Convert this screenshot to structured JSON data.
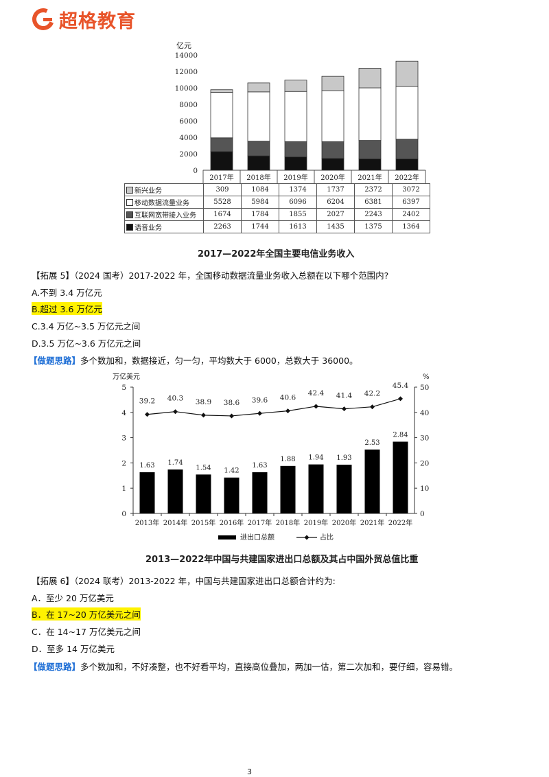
{
  "brand": {
    "name": "超格教育",
    "logo_color": "#e8542a"
  },
  "figure1": {
    "caption": "2017—2022年全国主要电信业务收入",
    "table_rows": [
      {
        "label": "新兴业务",
        "values": [
          "309",
          "1084",
          "1374",
          "1737",
          "2372",
          "3072"
        ]
      },
      {
        "label": "移动数据流量业务",
        "values": [
          "5528",
          "5984",
          "6096",
          "6204",
          "6381",
          "6397"
        ]
      },
      {
        "label": "互联网宽带接入业务",
        "values": [
          "1674",
          "1784",
          "1855",
          "2027",
          "2243",
          "2402"
        ]
      },
      {
        "label": "语音业务",
        "values": [
          "2263",
          "1744",
          "1613",
          "1435",
          "1375",
          "1364"
        ]
      }
    ]
  },
  "q5": {
    "stem": "【拓展 5】（2024 国考）2017-2022 年，全国移动数据流量业务收入总额在以下哪个范围内?",
    "options": [
      "A.不到 3.4 万亿元",
      "B.超过 3.6 万亿元",
      "C.3.4 万亿~3.5 万亿元之间",
      "D.3.5 万亿~3.6 万亿元之间"
    ],
    "highlighted": 1,
    "tip_label": "【做题思路】",
    "tip_text": "多个数加和，数据接近，匀一匀，平均数大于 6000，总数大于 36000。"
  },
  "figure2": {
    "caption": "2013—2022年中国与共建国家进出口总额及其占中国外贸总值比重"
  },
  "q6": {
    "stem": "【拓展 6】（2024 联考）2013-2022 年，中国与共建国家进出口总额合计约为:",
    "options": [
      "A．至少 20 万亿美元",
      "B．在 17~20 万亿美元之间",
      "C．在 14~17 万亿美元之间",
      "D．至多 14 万亿美元"
    ],
    "highlighted": 1,
    "tip_label": "【做题思路】",
    "tip_text": "多个数加和，不好凑整，也不好看平均，直接高位叠加，两加一估，第二次加和，要仔细，容易错。"
  },
  "page_number": "3",
  "chart_data": [
    {
      "type": "bar",
      "stacked": true,
      "ylabel": "亿元",
      "ylim": [
        0,
        14000
      ],
      "yticks": [
        0,
        2000,
        4000,
        6000,
        8000,
        10000,
        12000,
        14000
      ],
      "categories": [
        "2017年",
        "2018年",
        "2019年",
        "2020年",
        "2021年",
        "2022年"
      ],
      "series": [
        {
          "name": "语音业务",
          "values": [
            2263,
            1744,
            1613,
            1435,
            1375,
            1364
          ],
          "color": "#111111"
        },
        {
          "name": "互联网宽带接入业务",
          "values": [
            1674,
            1784,
            1855,
            2027,
            2243,
            2402
          ],
          "color": "#555555"
        },
        {
          "name": "移动数据流量业务",
          "values": [
            5528,
            5984,
            6096,
            6204,
            6381,
            6397
          ],
          "color": "#ffffff"
        },
        {
          "name": "新兴业务",
          "values": [
            309,
            1084,
            1374,
            1737,
            2372,
            3072
          ],
          "color": "#c8c8c8"
        }
      ]
    },
    {
      "type": "bar",
      "secondary_type": "line",
      "ylabel": "万亿美元",
      "y2label": "%",
      "ylim": [
        0,
        5
      ],
      "y2lim": [
        0,
        50
      ],
      "yticks": [
        0,
        1,
        2,
        3,
        4,
        5
      ],
      "y2ticks": [
        0,
        10,
        20,
        30,
        40,
        50
      ],
      "categories": [
        "2013年",
        "2014年",
        "2015年",
        "2016年",
        "2017年",
        "2018年",
        "2019年",
        "2020年",
        "2021年",
        "2022年"
      ],
      "series": [
        {
          "name": "进出口总额",
          "type": "bar",
          "values": [
            1.63,
            1.74,
            1.54,
            1.42,
            1.63,
            1.88,
            1.94,
            1.93,
            2.53,
            2.84
          ]
        },
        {
          "name": "占比",
          "type": "line",
          "axis": "right",
          "values": [
            39.2,
            40.3,
            38.9,
            38.6,
            39.6,
            40.6,
            42.4,
            41.4,
            42.2,
            45.4
          ]
        }
      ],
      "legend_position": "bottom"
    }
  ]
}
